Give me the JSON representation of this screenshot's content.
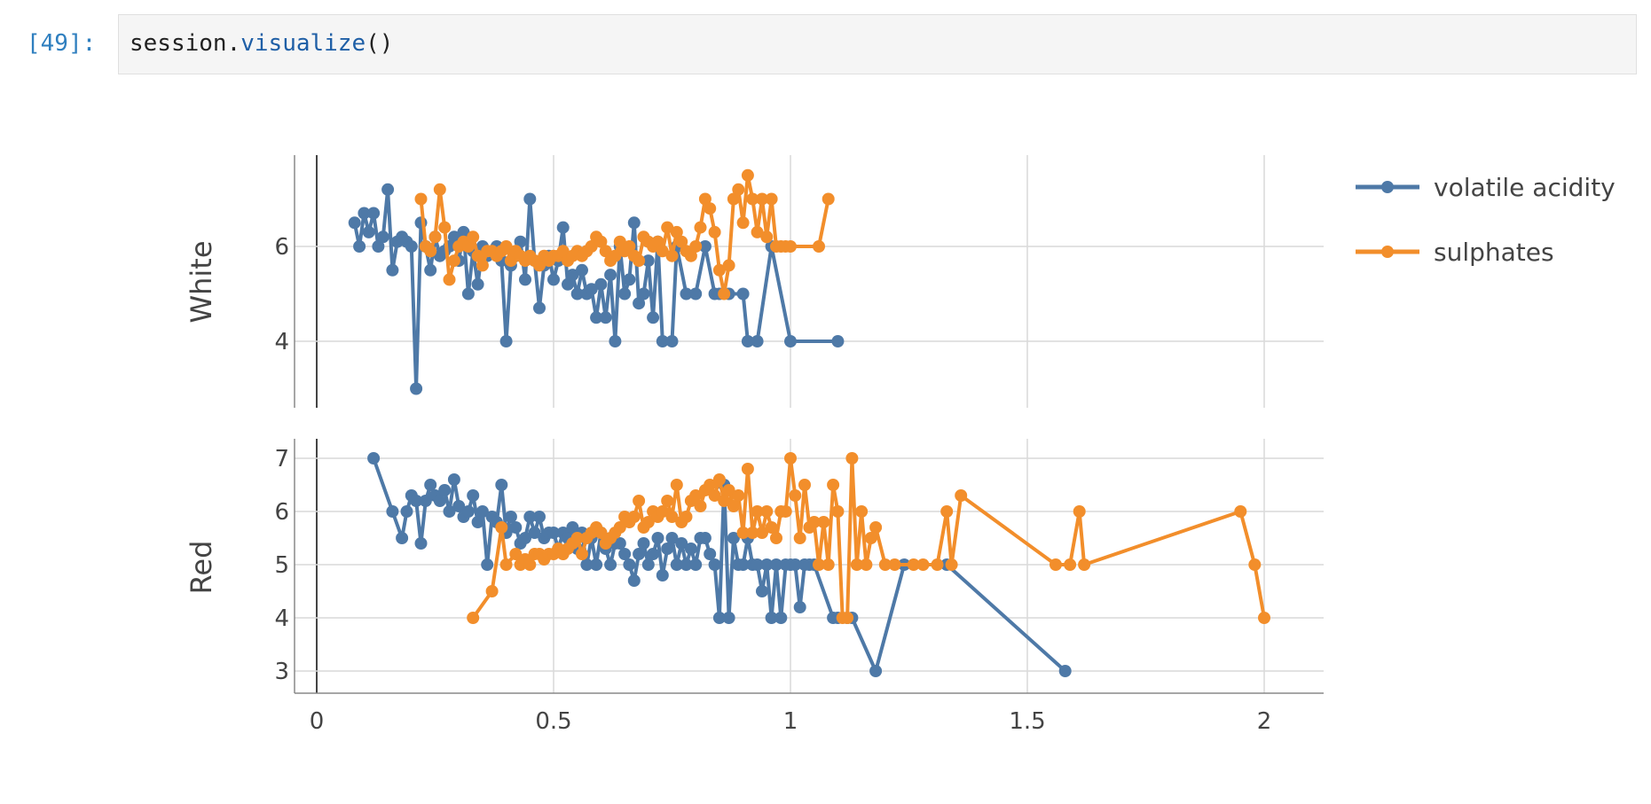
{
  "cell": {
    "prompt": "[49]:",
    "code_obj": "session.",
    "code_fn": "visualize",
    "code_args": "()"
  },
  "colors": {
    "volatile_acidity": "#4e79a7",
    "sulphates": "#f28e2b",
    "grid": "#d9d9d9"
  },
  "chart_data": {
    "type": "line",
    "legend_position": "top-right",
    "legend": [
      "volatile acidity",
      "sulphates"
    ],
    "x_ticks": [
      "0",
      "0.5",
      "1",
      "1.5",
      "2"
    ],
    "xlim": [
      -0.05,
      2.12
    ],
    "panels": [
      {
        "name": "White",
        "ylabel": "White",
        "ylim": [
          3,
          8.4
        ],
        "y_ticks": [
          4,
          6
        ],
        "series": [
          {
            "name": "volatile acidity",
            "x": [
              0.08,
              0.09,
              0.1,
              0.11,
              0.12,
              0.13,
              0.14,
              0.15,
              0.16,
              0.17,
              0.18,
              0.19,
              0.2,
              0.21,
              0.22,
              0.23,
              0.24,
              0.25,
              0.26,
              0.27,
              0.28,
              0.29,
              0.3,
              0.31,
              0.32,
              0.33,
              0.34,
              0.35,
              0.36,
              0.37,
              0.38,
              0.39,
              0.4,
              0.41,
              0.42,
              0.43,
              0.44,
              0.45,
              0.46,
              0.47,
              0.48,
              0.49,
              0.5,
              0.51,
              0.52,
              0.53,
              0.54,
              0.55,
              0.56,
              0.57,
              0.58,
              0.59,
              0.6,
              0.61,
              0.62,
              0.63,
              0.64,
              0.65,
              0.66,
              0.67,
              0.68,
              0.69,
              0.7,
              0.71,
              0.72,
              0.73,
              0.75,
              0.76,
              0.78,
              0.8,
              0.82,
              0.84,
              0.85,
              0.87,
              0.9,
              0.91,
              0.93,
              0.96,
              1.0,
              1.1
            ],
            "y": [
              6.5,
              6.0,
              6.7,
              6.3,
              6.7,
              6.0,
              6.2,
              7.2,
              5.5,
              6.1,
              6.2,
              6.1,
              6.0,
              3.0,
              6.5,
              6.0,
              5.5,
              6.2,
              5.8,
              5.9,
              6.0,
              6.2,
              5.7,
              6.3,
              5.0,
              5.9,
              5.2,
              6.0,
              5.8,
              5.9,
              6.0,
              5.7,
              4.0,
              5.6,
              5.8,
              6.1,
              5.3,
              7.0,
              5.7,
              4.7,
              5.6,
              5.8,
              5.3,
              5.7,
              6.4,
              5.2,
              5.4,
              5.0,
              5.5,
              5.0,
              5.1,
              4.5,
              5.2,
              4.5,
              5.4,
              4.0,
              6.0,
              5.0,
              5.3,
              6.5,
              4.8,
              5.0,
              5.7,
              4.5,
              6.1,
              4.0,
              4.0,
              6.0,
              5.0,
              5.0,
              6.0,
              5.0,
              5.0,
              5.0,
              5.0,
              4.0,
              4.0,
              6.0,
              4.0,
              4.0
            ]
          },
          {
            "name": "sulphates",
            "x": [
              0.22,
              0.23,
              0.24,
              0.25,
              0.26,
              0.27,
              0.28,
              0.29,
              0.3,
              0.31,
              0.32,
              0.33,
              0.34,
              0.35,
              0.36,
              0.37,
              0.38,
              0.39,
              0.4,
              0.41,
              0.42,
              0.43,
              0.44,
              0.45,
              0.46,
              0.47,
              0.48,
              0.49,
              0.5,
              0.51,
              0.52,
              0.53,
              0.54,
              0.55,
              0.56,
              0.57,
              0.58,
              0.59,
              0.6,
              0.61,
              0.62,
              0.63,
              0.64,
              0.65,
              0.66,
              0.67,
              0.68,
              0.69,
              0.7,
              0.71,
              0.72,
              0.73,
              0.74,
              0.75,
              0.76,
              0.77,
              0.78,
              0.79,
              0.8,
              0.81,
              0.82,
              0.83,
              0.84,
              0.85,
              0.86,
              0.87,
              0.88,
              0.89,
              0.9,
              0.91,
              0.92,
              0.93,
              0.94,
              0.95,
              0.96,
              0.97,
              0.98,
              0.99,
              1.0,
              1.06,
              1.08
            ],
            "y": [
              7.0,
              6.0,
              5.9,
              6.2,
              7.2,
              6.4,
              5.3,
              5.7,
              6.0,
              6.1,
              6.0,
              6.2,
              5.8,
              5.6,
              5.9,
              5.9,
              5.8,
              5.9,
              6.0,
              5.7,
              5.9,
              5.8,
              5.7,
              5.8,
              5.7,
              5.6,
              5.8,
              5.7,
              5.8,
              5.8,
              5.9,
              5.7,
              5.8,
              5.9,
              5.8,
              5.9,
              6.0,
              6.2,
              6.1,
              5.9,
              5.7,
              5.8,
              6.1,
              5.9,
              6.0,
              5.8,
              5.7,
              6.2,
              6.1,
              6.0,
              6.1,
              5.9,
              6.4,
              5.8,
              6.3,
              6.1,
              5.9,
              5.8,
              6.0,
              6.4,
              7.0,
              6.8,
              6.3,
              5.5,
              5.0,
              5.6,
              7.0,
              7.2,
              6.5,
              7.5,
              7.0,
              6.3,
              7.0,
              6.2,
              7.0,
              6.0,
              6.0,
              6.0,
              6.0,
              6.0,
              7.0
            ]
          }
        ]
      },
      {
        "name": "Red",
        "ylabel": "Red",
        "ylim": [
          2.6,
          7.4
        ],
        "y_ticks": [
          3,
          4,
          5,
          6,
          7
        ],
        "series": [
          {
            "name": "volatile acidity",
            "x": [
              0.12,
              0.16,
              0.18,
              0.19,
              0.2,
              0.21,
              0.22,
              0.23,
              0.24,
              0.25,
              0.26,
              0.27,
              0.28,
              0.29,
              0.3,
              0.31,
              0.32,
              0.33,
              0.34,
              0.35,
              0.36,
              0.37,
              0.38,
              0.39,
              0.4,
              0.41,
              0.42,
              0.43,
              0.44,
              0.45,
              0.46,
              0.47,
              0.48,
              0.49,
              0.5,
              0.51,
              0.52,
              0.53,
              0.54,
              0.55,
              0.56,
              0.57,
              0.58,
              0.59,
              0.6,
              0.61,
              0.62,
              0.63,
              0.64,
              0.65,
              0.66,
              0.67,
              0.68,
              0.69,
              0.7,
              0.71,
              0.72,
              0.73,
              0.74,
              0.75,
              0.76,
              0.77,
              0.78,
              0.79,
              0.8,
              0.81,
              0.82,
              0.83,
              0.84,
              0.85,
              0.86,
              0.87,
              0.88,
              0.89,
              0.9,
              0.91,
              0.92,
              0.93,
              0.94,
              0.95,
              0.96,
              0.97,
              0.98,
              0.99,
              1.0,
              1.01,
              1.02,
              1.03,
              1.04,
              1.05,
              1.09,
              1.1,
              1.12,
              1.13,
              1.18,
              1.24,
              1.33,
              1.58
            ],
            "y": [
              7.0,
              6.0,
              5.5,
              6.0,
              6.3,
              6.2,
              5.4,
              6.2,
              6.5,
              6.3,
              6.2,
              6.4,
              6.0,
              6.6,
              6.1,
              5.9,
              6.0,
              6.3,
              5.8,
              6.0,
              5.0,
              5.9,
              5.8,
              6.5,
              5.6,
              5.9,
              5.7,
              5.4,
              5.5,
              5.9,
              5.6,
              5.9,
              5.5,
              5.6,
              5.6,
              5.3,
              5.6,
              5.5,
              5.7,
              5.3,
              5.6,
              5.0,
              5.5,
              5.0,
              5.6,
              5.3,
              5.0,
              5.4,
              5.4,
              5.2,
              5.0,
              4.7,
              5.2,
              5.4,
              5.0,
              5.2,
              5.5,
              4.8,
              5.3,
              5.5,
              5.0,
              5.4,
              5.0,
              5.3,
              5.0,
              5.5,
              5.5,
              5.2,
              5.0,
              4.0,
              6.5,
              4.0,
              5.5,
              5.0,
              5.0,
              5.5,
              5.0,
              5.0,
              4.5,
              5.0,
              4.0,
              5.0,
              4.0,
              5.0,
              5.0,
              5.0,
              4.2,
              5.0,
              5.0,
              5.0,
              4.0,
              4.0,
              4.0,
              4.0,
              3.0,
              5.0,
              5.0,
              3.0
            ]
          },
          {
            "name": "sulphates",
            "x": [
              0.33,
              0.37,
              0.39,
              0.4,
              0.42,
              0.43,
              0.44,
              0.45,
              0.46,
              0.47,
              0.48,
              0.49,
              0.5,
              0.51,
              0.52,
              0.53,
              0.54,
              0.55,
              0.56,
              0.57,
              0.58,
              0.59,
              0.6,
              0.61,
              0.62,
              0.63,
              0.64,
              0.65,
              0.66,
              0.67,
              0.68,
              0.69,
              0.7,
              0.71,
              0.72,
              0.73,
              0.74,
              0.75,
              0.76,
              0.77,
              0.78,
              0.79,
              0.8,
              0.81,
              0.82,
              0.83,
              0.84,
              0.85,
              0.86,
              0.87,
              0.88,
              0.89,
              0.9,
              0.91,
              0.92,
              0.93,
              0.94,
              0.95,
              0.96,
              0.97,
              0.98,
              0.99,
              1.0,
              1.01,
              1.02,
              1.03,
              1.04,
              1.05,
              1.06,
              1.07,
              1.08,
              1.09,
              1.1,
              1.11,
              1.12,
              1.13,
              1.14,
              1.15,
              1.16,
              1.17,
              1.18,
              1.2,
              1.22,
              1.26,
              1.28,
              1.31,
              1.33,
              1.34,
              1.36,
              1.56,
              1.59,
              1.61,
              1.62,
              1.95,
              1.98,
              2.0
            ],
            "y": [
              4.0,
              4.5,
              5.7,
              5.0,
              5.2,
              5.0,
              5.1,
              5.0,
              5.2,
              5.2,
              5.1,
              5.2,
              5.2,
              5.3,
              5.2,
              5.3,
              5.4,
              5.5,
              5.2,
              5.5,
              5.6,
              5.7,
              5.6,
              5.4,
              5.5,
              5.6,
              5.7,
              5.9,
              5.8,
              5.9,
              6.2,
              5.7,
              5.8,
              6.0,
              5.9,
              6.0,
              6.2,
              5.9,
              6.5,
              5.8,
              5.9,
              6.2,
              6.3,
              6.1,
              6.4,
              6.5,
              6.3,
              6.6,
              6.2,
              6.4,
              6.1,
              6.3,
              5.6,
              6.8,
              5.6,
              6.0,
              5.6,
              6.0,
              5.7,
              5.5,
              6.0,
              6.0,
              7.0,
              6.3,
              5.5,
              6.5,
              5.7,
              5.8,
              5.0,
              5.8,
              5.0,
              6.5,
              6.0,
              4.0,
              4.0,
              7.0,
              5.0,
              6.0,
              5.0,
              5.5,
              5.7,
              5.0,
              5.0,
              5.0,
              5.0,
              5.0,
              6.0,
              5.0,
              6.3,
              5.0,
              5.0,
              6.0,
              5.0,
              6.0,
              5.0,
              4.0
            ]
          }
        ]
      }
    ]
  }
}
